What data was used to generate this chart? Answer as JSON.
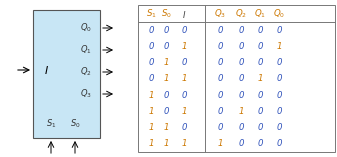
{
  "box_color": "#c8e6f5",
  "box_edge_color": "#555555",
  "table_edge": "#777777",
  "zero_color": "#3355bb",
  "one_color": "#cc7700",
  "header_S_color": "#cc7700",
  "header_I_color": "#444444",
  "header_Q_color": "#cc7700",
  "table_data": [
    [
      0,
      0,
      0,
      0,
      0,
      0,
      0
    ],
    [
      0,
      0,
      1,
      0,
      0,
      0,
      1
    ],
    [
      0,
      1,
      0,
      0,
      0,
      0,
      0
    ],
    [
      0,
      1,
      1,
      0,
      0,
      1,
      0
    ],
    [
      1,
      0,
      0,
      0,
      0,
      0,
      0
    ],
    [
      1,
      0,
      1,
      0,
      1,
      0,
      0
    ],
    [
      1,
      1,
      0,
      0,
      0,
      0,
      0
    ],
    [
      1,
      1,
      1,
      1,
      0,
      0,
      0
    ]
  ],
  "figw": 3.37,
  "figh": 1.57,
  "dpi": 100
}
